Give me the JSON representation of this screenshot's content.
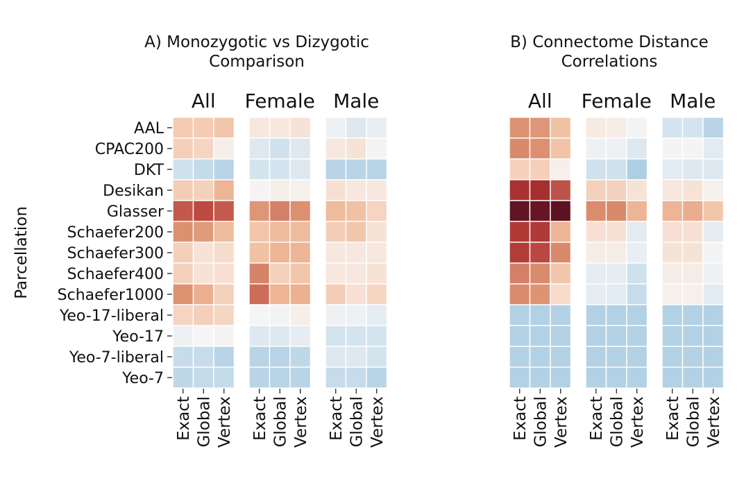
{
  "chart_data": [
    {
      "type": "heatmap",
      "title": "A) Monozygotic vs Dizygotic\nComparison",
      "ylabel": "Parcellation",
      "rows": [
        "AAL",
        "CPAC200",
        "DKT",
        "Desikan",
        "Glasser",
        "Schaefer200",
        "Schaefer300",
        "Schaefer400",
        "Schaefer1000",
        "Yeo-17-liberal",
        "Yeo-17",
        "Yeo-7-liberal",
        "Yeo-7"
      ],
      "columns": [
        "Exact",
        "Global",
        "Vertex"
      ],
      "groups": [
        {
          "name": "All",
          "cells": [
            [
              "#f4cbb3",
              "#f4cbb3",
              "#f2c6ab"
            ],
            [
              "#f5cfb9",
              "#f5d4c1",
              "#f6eee9"
            ],
            [
              "#cfe1ec",
              "#c4dbe9",
              "#b8d4e6"
            ],
            [
              "#f4cdb6",
              "#f4d1bc",
              "#eeb595"
            ],
            [
              "#c4584a",
              "#bb4a40",
              "#c35a4b"
            ],
            [
              "#dd9070",
              "#e09b7c",
              "#efbb9d"
            ],
            [
              "#f4d0ba",
              "#f7e2d6",
              "#f6dccc"
            ],
            [
              "#f4d1bc",
              "#f7e2d6",
              "#f7e0d3"
            ],
            [
              "#de9272",
              "#ecb091",
              "#f4d1bc"
            ],
            [
              "#f5d4c1",
              "#f4cfb9",
              "#f5d6c3"
            ],
            [
              "#eef1f4",
              "#f5f5f5",
              "#f5f3f3"
            ],
            [
              "#c6dcea",
              "#c6dcea",
              "#b8d4e6"
            ],
            [
              "#bfd8e8",
              "#c4dbe9",
              "#c4dbe9"
            ]
          ]
        },
        {
          "name": "Female",
          "cells": [
            [
              "#f7e7de",
              "#f7e8df",
              "#f7e2d6"
            ],
            [
              "#dde8f0",
              "#cfe1ec",
              "#dde8f0"
            ],
            [
              "#d4e4ee",
              "#d4e4ee",
              "#dde8f0"
            ],
            [
              "#f5f3f3",
              "#f6eee9",
              "#f6f0ec"
            ],
            [
              "#df9676",
              "#d5806a",
              "#dd9070"
            ],
            [
              "#f2c5aa",
              "#efbb9d",
              "#efbb9d"
            ],
            [
              "#f1c1a4",
              "#eeb595",
              "#eeb595"
            ],
            [
              "#d58469",
              "#f4d1bc",
              "#f2c6ab"
            ],
            [
              "#cd6c58",
              "#eeb595",
              "#edb191"
            ],
            [
              "#f5f5f5",
              "#f2f3f5",
              "#f6eee9"
            ],
            [
              "#dde8f0",
              "#dde8f0",
              "#e5ecf2"
            ],
            [
              "#b8d4e6",
              "#b8d4e6",
              "#bfd8e8"
            ],
            [
              "#b8d4e6",
              "#b8d4e6",
              "#b8d4e6"
            ]
          ]
        },
        {
          "name": "Male",
          "cells": [
            [
              "#eef1f4",
              "#dde8f0",
              "#e8eef3"
            ],
            [
              "#f7e8df",
              "#f7e2d6",
              "#f4f4f5"
            ],
            [
              "#b8d4e6",
              "#b8d4e6",
              "#b8d4e6"
            ],
            [
              "#f7e0d3",
              "#f7e7de",
              "#f7e7de"
            ],
            [
              "#efbb9d",
              "#f1c1a4",
              "#f5d4c1"
            ],
            [
              "#f4cdb6",
              "#f2c6ab",
              "#f7e2d6"
            ],
            [
              "#f7e7de",
              "#f7e7de",
              "#f7e7de"
            ],
            [
              "#f7e7de",
              "#f7e7de",
              "#f7e2d6"
            ],
            [
              "#f4cdb6",
              "#f7e0d3",
              "#f5d6c3"
            ],
            [
              "#eef1f4",
              "#eef1f4",
              "#e5ecf2"
            ],
            [
              "#d4e4ee",
              "#d4e4ee",
              "#d4e4ee"
            ],
            [
              "#dde8f0",
              "#dde8f0",
              "#d4e4ee"
            ],
            [
              "#c6dcea",
              "#c6dcea",
              "#b8d4e6"
            ]
          ]
        }
      ]
    },
    {
      "type": "heatmap",
      "title": "B) Connectome Distance\nCorrelations",
      "ylabel": "",
      "rows": [
        "AAL",
        "CPAC200",
        "DKT",
        "Desikan",
        "Glasser",
        "Schaefer200",
        "Schaefer300",
        "Schaefer400",
        "Schaefer1000",
        "Yeo-17-liberal",
        "Yeo-17",
        "Yeo-7-liberal",
        "Yeo-7"
      ],
      "columns": [
        "Exact",
        "Global",
        "Vertex"
      ],
      "groups": [
        {
          "name": "All",
          "cells": [
            [
              "#dc9372",
              "#e09578",
              "#f1c1a4"
            ],
            [
              "#d98a6b",
              "#de8f70",
              "#f2c3a7"
            ],
            [
              "#f6d2bd",
              "#f5cfb9",
              "#f6efec"
            ],
            [
              "#a83232",
              "#a52e2f",
              "#bd5348"
            ],
            [
              "#611424",
              "#671525",
              "#5d1221"
            ],
            [
              "#b13a37",
              "#b03a37",
              "#edb595"
            ],
            [
              "#b13c38",
              "#ba4741",
              "#d98a6b"
            ],
            [
              "#d48068",
              "#d98b6d",
              "#f2c6ab"
            ],
            [
              "#d98b6d",
              "#de9373",
              "#f7dac9"
            ],
            [
              "#b3d1e4",
              "#b3d1e4",
              "#b3d1e4"
            ],
            [
              "#b3d1e4",
              "#b3d1e4",
              "#b3d1e4"
            ],
            [
              "#b3d1e4",
              "#b3d1e4",
              "#b3d1e4"
            ],
            [
              "#b3d1e4",
              "#b3d1e4",
              "#b3d1e4"
            ]
          ]
        },
        {
          "name": "Female",
          "cells": [
            [
              "#f6eae3",
              "#f6ece6",
              "#f4f4f5"
            ],
            [
              "#eef1f4",
              "#eef1f4",
              "#dde8f0"
            ],
            [
              "#cfe1ec",
              "#cfe1ec",
              "#aecfe3"
            ],
            [
              "#f4d1bc",
              "#f4d1bc",
              "#f7e2d6"
            ],
            [
              "#db8c6d",
              "#d98a6b",
              "#edb595"
            ],
            [
              "#f7e0d3",
              "#f7e0d3",
              "#e2ebf1"
            ],
            [
              "#f6ece6",
              "#f6ece6",
              "#e8eef3"
            ],
            [
              "#e5ecf2",
              "#e5ecf2",
              "#cfe1ec"
            ],
            [
              "#e5ecf2",
              "#e2ebf1",
              "#c6dcea"
            ],
            [
              "#b3d1e4",
              "#b3d1e4",
              "#b3d1e4"
            ],
            [
              "#b3d1e4",
              "#b3d1e4",
              "#b3d1e4"
            ],
            [
              "#b3d1e4",
              "#b3d1e4",
              "#b3d1e4"
            ],
            [
              "#b3d1e4",
              "#b3d1e4",
              "#b3d1e4"
            ]
          ]
        },
        {
          "name": "Male",
          "cells": [
            [
              "#d4e4ee",
              "#d4e4ee",
              "#b8d4e6"
            ],
            [
              "#f4f4f5",
              "#f4f4f5",
              "#e2ebf1"
            ],
            [
              "#e2ebf1",
              "#dde8f0",
              "#dde8f0"
            ],
            [
              "#f7e7de",
              "#f7e2d6",
              "#f6f0ec"
            ],
            [
              "#edb595",
              "#eaad8d",
              "#f2c6ab"
            ],
            [
              "#f7e0d3",
              "#f7e0d3",
              "#e5ecf2"
            ],
            [
              "#f7e2d6",
              "#f7e2d6",
              "#f4f4f5"
            ],
            [
              "#f6ece6",
              "#f6ece6",
              "#eef1f4"
            ],
            [
              "#f6efec",
              "#f6efec",
              "#e2ebf1"
            ],
            [
              "#b3d1e4",
              "#b3d1e4",
              "#b3d1e4"
            ],
            [
              "#b3d1e4",
              "#b3d1e4",
              "#b3d1e4"
            ],
            [
              "#b3d1e4",
              "#b3d1e4",
              "#b3d1e4"
            ],
            [
              "#b3d1e4",
              "#b3d1e4",
              "#b3d1e4"
            ]
          ]
        }
      ]
    }
  ]
}
